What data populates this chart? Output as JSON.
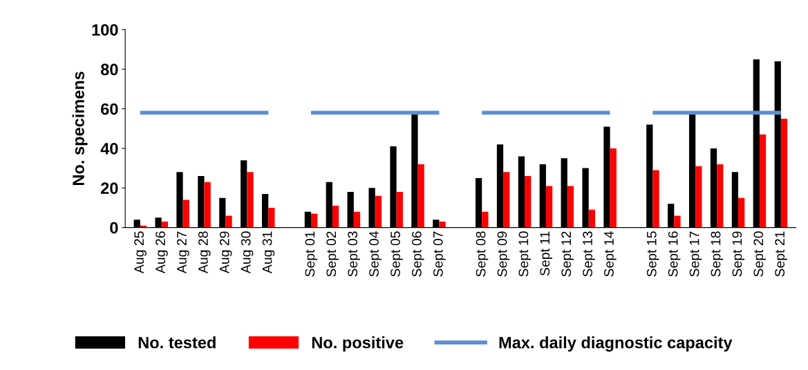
{
  "chart_data": {
    "type": "bar",
    "ylabel": "No. specimens",
    "categories": [
      "Aug 25",
      "Aug 26",
      "Aug 27",
      "Aug 28",
      "Aug 29",
      "Aug 30",
      "Aug 31",
      null,
      "Sept 01",
      "Sept 02",
      "Sept 03",
      "Sept 04",
      "Sept 05",
      "Sept 06",
      "Sept 07",
      null,
      "Sept 08",
      "Sept 09",
      "Sept 10",
      "Sept 11",
      "Sept 12",
      "Sept 13",
      "Sept 14",
      null,
      "Sept 15",
      "Sept 16",
      "Sept 17",
      "Sept 18",
      "Sept 19",
      "Sept 20",
      "Sept 21"
    ],
    "series": [
      {
        "name": "No. tested",
        "color": "#000000",
        "values": [
          4,
          5,
          28,
          26,
          15,
          34,
          17,
          null,
          8,
          23,
          18,
          20,
          41,
          58,
          4,
          null,
          25,
          42,
          36,
          32,
          35,
          30,
          51,
          null,
          52,
          12,
          58,
          40,
          28,
          85,
          84
        ]
      },
      {
        "name": "No. positive",
        "color": "#ff0000",
        "values": [
          1,
          3,
          14,
          23,
          6,
          28,
          10,
          null,
          7,
          11,
          8,
          16,
          18,
          32,
          3,
          null,
          8,
          28,
          26,
          21,
          21,
          9,
          40,
          null,
          29,
          6,
          31,
          32,
          15,
          47,
          55
        ]
      },
      {
        "name": "Max. daily diagnostic capacity",
        "type": "line",
        "color": "#5b8fd6",
        "values": [
          58,
          58,
          58,
          58,
          58,
          58,
          58,
          null,
          58,
          58,
          58,
          58,
          58,
          58,
          58,
          null,
          58,
          58,
          58,
          58,
          58,
          58,
          58,
          null,
          58,
          58,
          58,
          58,
          58,
          58,
          58
        ]
      }
    ],
    "ylim": [
      0,
      100
    ],
    "yticks": [
      0,
      20,
      40,
      60,
      80,
      100
    ],
    "grid": false,
    "legend": "bottom",
    "marker": "none",
    "line_style": "solid"
  }
}
